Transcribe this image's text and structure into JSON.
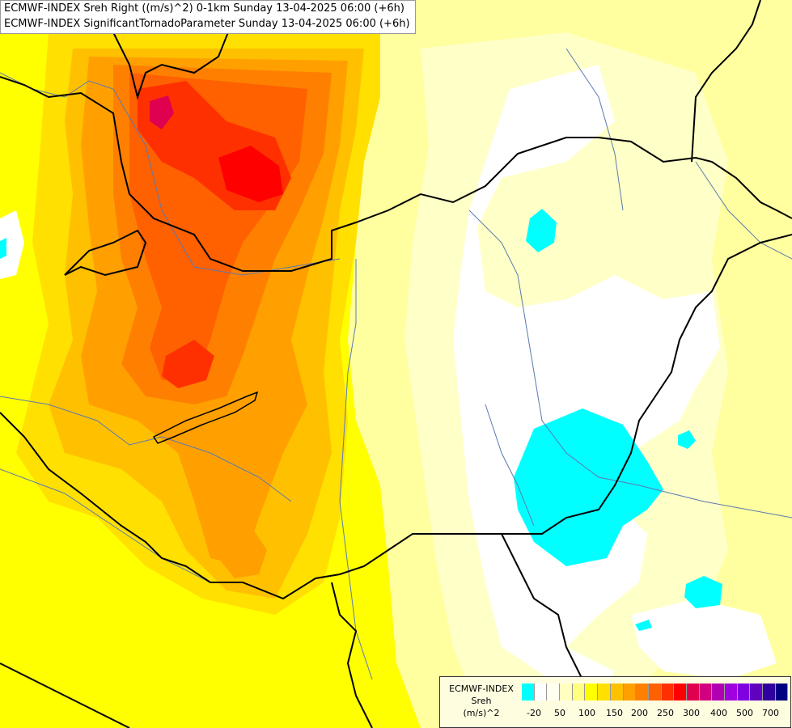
{
  "title": {
    "line1": "ECMWF-INDEX Sreh Right ((m/s)^2) 0-1km Sunday 13-04-2025 06:00 (+6h)",
    "line2": "ECMWF-INDEX SignificantTornadoParameter Sunday 13-04-2025 06:00 (+6h)"
  },
  "legend": {
    "label_line1": "ECMWF-INDEX",
    "label_line2": "Sreh",
    "label_line3": "(m/s)^2",
    "colors": [
      "#00ffff",
      "#ffffff",
      "#fffff0",
      "#ffffc0",
      "#ffff80",
      "#ffff00",
      "#ffe000",
      "#ffc000",
      "#ffa000",
      "#ff8000",
      "#ff6000",
      "#ff3000",
      "#ff0000",
      "#e00050",
      "#d00080",
      "#b000b0",
      "#a000e0",
      "#8000e0",
      "#6000c0",
      "#3000a0",
      "#000080"
    ],
    "ticks": [
      "-20",
      "50",
      "100",
      "150",
      "200",
      "250",
      "300",
      "400",
      "500",
      "700"
    ]
  },
  "map_layers": {
    "background": "#ffff00",
    "border_color": "#000000",
    "river_color": "#5a7ab0"
  }
}
